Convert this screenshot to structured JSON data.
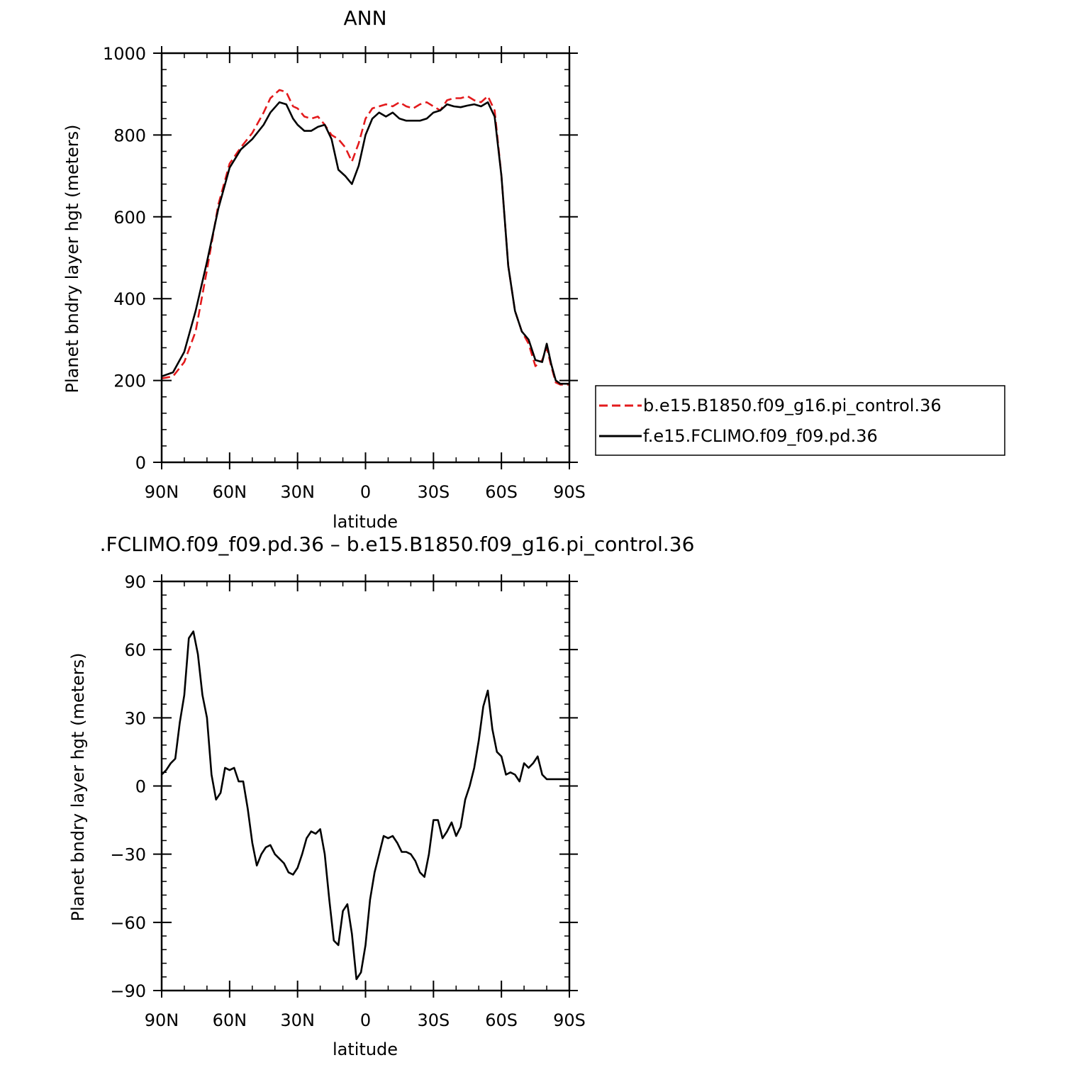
{
  "chart_data": [
    {
      "type": "line",
      "title": "ANN",
      "xlabel": "latitude",
      "ylabel": "Planet bndry layer hgt (meters)",
      "xlim": [
        90,
        -90
      ],
      "ylim": [
        0,
        1000
      ],
      "x_ticks": [
        {
          "value": 90,
          "label": "90N"
        },
        {
          "value": 60,
          "label": "60N"
        },
        {
          "value": 30,
          "label": "30N"
        },
        {
          "value": 0,
          "label": "0"
        },
        {
          "value": -30,
          "label": "30S"
        },
        {
          "value": -60,
          "label": "60S"
        },
        {
          "value": -90,
          "label": "90S"
        }
      ],
      "y_ticks": [
        {
          "value": 0,
          "label": "0"
        },
        {
          "value": 200,
          "label": "200"
        },
        {
          "value": 400,
          "label": "400"
        },
        {
          "value": 600,
          "label": "600"
        },
        {
          "value": 800,
          "label": "800"
        },
        {
          "value": 1000,
          "label": "1000"
        }
      ],
      "legend": {
        "placement": "right, outside plot"
      },
      "x": [
        90,
        85,
        80,
        75,
        70,
        65,
        60,
        55,
        50,
        45,
        42,
        38,
        35,
        32,
        30,
        27,
        24,
        21,
        18,
        15,
        12,
        9,
        6,
        3,
        0,
        -3,
        -6,
        -9,
        -12,
        -15,
        -18,
        -21,
        -24,
        -27,
        -30,
        -33,
        -36,
        -39,
        -42,
        -45,
        -48,
        -51,
        -54,
        -57,
        -60,
        -63,
        -66,
        -69,
        -72,
        -75,
        -78,
        -80,
        -82,
        -84,
        -86,
        -88,
        -90
      ],
      "series": [
        {
          "name": "b.e15.B1850.f09_g16.pi_control.36",
          "color": "#e31a1c",
          "dash": "dashed",
          "values": [
            205,
            210,
            245,
            320,
            470,
            630,
            730,
            770,
            805,
            855,
            890,
            910,
            905,
            870,
            865,
            845,
            840,
            845,
            825,
            800,
            790,
            770,
            735,
            780,
            840,
            865,
            870,
            875,
            870,
            880,
            870,
            865,
            875,
            880,
            870,
            860,
            885,
            890,
            890,
            895,
            885,
            880,
            895,
            860,
            700,
            480,
            370,
            320,
            290,
            235,
            250,
            280,
            235,
            195,
            190,
            190,
            190
          ]
        },
        {
          "name": "f.e15.FCLIMO.f09_f09.pd.36",
          "color": "#000000",
          "dash": "solid",
          "values": [
            210,
            220,
            270,
            370,
            490,
            620,
            720,
            765,
            790,
            825,
            855,
            880,
            875,
            840,
            825,
            810,
            810,
            820,
            825,
            790,
            715,
            700,
            680,
            725,
            800,
            840,
            855,
            845,
            855,
            840,
            835,
            835,
            835,
            840,
            855,
            860,
            875,
            870,
            868,
            872,
            875,
            870,
            880,
            845,
            700,
            480,
            370,
            320,
            300,
            250,
            245,
            290,
            240,
            200,
            192,
            192,
            192
          ]
        }
      ]
    },
    {
      "type": "line",
      "title": ".FCLIMO.f09_f09.pd.36 – b.e15.B1850.f09_g16.pi_control.36",
      "xlabel": "latitude",
      "ylabel": "Planet bndry layer hgt (meters)",
      "xlim": [
        90,
        -90
      ],
      "ylim": [
        -90,
        90
      ],
      "x_ticks": [
        {
          "value": 90,
          "label": "90N"
        },
        {
          "value": 60,
          "label": "60N"
        },
        {
          "value": 30,
          "label": "30N"
        },
        {
          "value": 0,
          "label": "0"
        },
        {
          "value": -30,
          "label": "30S"
        },
        {
          "value": -60,
          "label": "60S"
        },
        {
          "value": -90,
          "label": "90S"
        }
      ],
      "y_ticks": [
        {
          "value": -90,
          "label": "−90"
        },
        {
          "value": -60,
          "label": "−60"
        },
        {
          "value": -30,
          "label": "−30"
        },
        {
          "value": 0,
          "label": "0"
        },
        {
          "value": 30,
          "label": "30"
        },
        {
          "value": 60,
          "label": "60"
        },
        {
          "value": 90,
          "label": "90"
        }
      ],
      "series": [
        {
          "color": "#000000",
          "x": [
            90,
            88,
            86,
            84,
            82,
            80,
            78,
            76,
            74,
            72,
            70,
            68,
            66,
            64,
            62,
            60,
            58,
            56,
            54,
            52,
            50,
            48,
            46,
            44,
            42,
            40,
            38,
            36,
            34,
            32,
            30,
            28,
            26,
            24,
            22,
            20,
            18,
            16,
            14,
            12,
            10,
            8,
            6,
            4,
            2,
            0,
            -2,
            -4,
            -6,
            -8,
            -10,
            -12,
            -14,
            -16,
            -18,
            -20,
            -22,
            -24,
            -26,
            -28,
            -30,
            -32,
            -34,
            -36,
            -38,
            -40,
            -42,
            -44,
            -46,
            -48,
            -50,
            -52,
            -54,
            -56,
            -58,
            -60,
            -62,
            -64,
            -66,
            -68,
            -70,
            -72,
            -74,
            -76,
            -78,
            -80,
            -82,
            -84,
            -86,
            -88,
            -90
          ],
          "values": [
            5,
            7,
            10,
            12,
            28,
            40,
            65,
            68,
            58,
            40,
            30,
            5,
            -6,
            -3,
            8,
            7,
            8,
            2,
            2,
            -10,
            -25,
            -35,
            -30,
            -27,
            -26,
            -30,
            -32,
            -34,
            -38,
            -39,
            -36,
            -30,
            -23,
            -20,
            -21,
            -19,
            -30,
            -50,
            -68,
            -70,
            -55,
            -52,
            -65,
            -85,
            -82,
            -70,
            -50,
            -38,
            -30,
            -22,
            -23,
            -22,
            -25,
            -29,
            -29,
            -30,
            -33,
            -38,
            -40,
            -30,
            -15,
            -15,
            -23,
            -20,
            -16,
            -22,
            -18,
            -6,
            0,
            8,
            20,
            35,
            42,
            25,
            15,
            13,
            5,
            6,
            5,
            2,
            10,
            8,
            10,
            13,
            5,
            3,
            3,
            3,
            3,
            3,
            3
          ]
        }
      ]
    }
  ]
}
